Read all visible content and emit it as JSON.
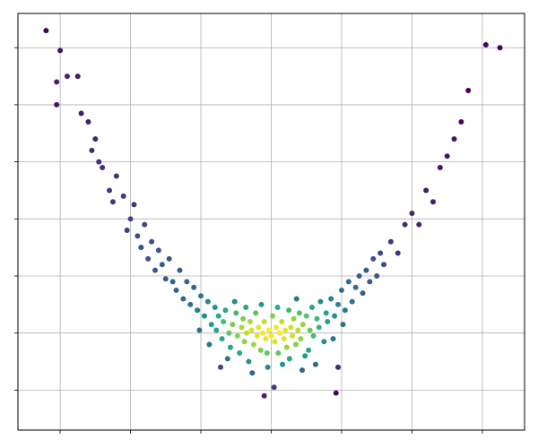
{
  "chart_data": {
    "type": "scatter",
    "colormap": "viridis",
    "grid": true,
    "xlim": [
      -3.6,
      3.6
    ],
    "xticks": [
      -3,
      -2,
      -1,
      0,
      1,
      2,
      3
    ],
    "ylim": [
      -1.7,
      5.6
    ],
    "yticks": [
      -1,
      0,
      1,
      2,
      3,
      4,
      5
    ],
    "x": [
      -3.2,
      -3.0,
      -3.05,
      -2.9,
      -3.05,
      -2.75,
      -2.7,
      -2.6,
      -2.5,
      -2.55,
      -2.45,
      -2.4,
      -2.3,
      -2.2,
      -2.25,
      -2.1,
      -2.0,
      -2.05,
      -1.95,
      -1.9,
      -1.85,
      -1.8,
      -1.75,
      -1.7,
      -1.65,
      -1.6,
      -1.55,
      -1.5,
      -1.45,
      -1.4,
      -1.35,
      -1.3,
      -1.25,
      -1.2,
      -1.15,
      -1.1,
      -1.05,
      -1.0,
      -0.95,
      -0.9,
      -0.85,
      -0.8,
      -0.78,
      -0.75,
      -0.7,
      -0.68,
      -0.65,
      -0.6,
      -0.58,
      -0.55,
      -0.5,
      -0.48,
      -0.45,
      -0.42,
      -0.4,
      -0.38,
      -0.35,
      -0.32,
      -0.3,
      -0.28,
      -0.25,
      -0.22,
      -0.2,
      -0.18,
      -0.15,
      -0.12,
      -0.1,
      -0.08,
      -0.05,
      -0.03,
      0,
      0.02,
      0.05,
      0.07,
      0.1,
      0.12,
      0.15,
      0.18,
      0.2,
      0.22,
      0.25,
      0.28,
      0.3,
      0.32,
      0.35,
      0.38,
      0.4,
      0.42,
      0.45,
      0.48,
      0.5,
      0.55,
      0.58,
      0.6,
      0.65,
      0.68,
      0.7,
      0.75,
      0.78,
      0.8,
      0.85,
      0.9,
      0.95,
      1.0,
      1.05,
      1.1,
      1.15,
      1.2,
      1.25,
      1.3,
      1.35,
      1.4,
      1.45,
      1.5,
      1.55,
      1.6,
      1.7,
      1.8,
      1.9,
      2.0,
      2.1,
      2.2,
      2.3,
      2.4,
      2.5,
      2.6,
      2.7,
      2.8,
      3.05,
      3.25,
      -0.62,
      -0.52,
      -0.36,
      -0.27,
      -0.14,
      -0.06,
      0.04,
      0.09,
      0.16,
      0.26,
      0.36,
      0.44,
      0.53,
      -0.88,
      0.88,
      -1.02,
      1.02,
      0.63,
      -0.72,
      0.95,
      -0.1,
      0.92
    ],
    "y": [
      5.3,
      4.95,
      4.4,
      4.5,
      4.0,
      4.5,
      3.85,
      3.7,
      3.4,
      3.2,
      3.0,
      2.9,
      2.5,
      2.75,
      2.3,
      2.4,
      2.0,
      1.8,
      2.25,
      1.7,
      1.5,
      1.9,
      1.3,
      1.6,
      1.1,
      1.45,
      1.2,
      0.95,
      1.3,
      0.9,
      0.75,
      1.1,
      0.6,
      0.9,
      0.5,
      0.8,
      0.4,
      0.65,
      0.3,
      0.55,
      0.15,
      0.45,
      0.05,
      0.3,
      -0.1,
      0.2,
      0.4,
      0.0,
      -0.25,
      0.15,
      0.35,
      -0.05,
      -0.35,
      0.1,
      0.25,
      -0.15,
      0.0,
      -0.5,
      0.2,
      0.05,
      -0.2,
      0.35,
      -0.05,
      0.1,
      -0.3,
      0.0,
      0.2,
      -0.1,
      -0.6,
      0.05,
      -0.05,
      0.3,
      -0.15,
      0.1,
      -0.35,
      0.0,
      0.2,
      -0.1,
      0.05,
      -0.25,
      0.4,
      0.1,
      -0.05,
      0.25,
      -0.2,
      0.05,
      0.35,
      -0.1,
      0.15,
      -0.4,
      0.3,
      0.05,
      0.45,
      -0.05,
      0.25,
      0.1,
      0.55,
      -0.15,
      0.35,
      0.2,
      0.6,
      0.3,
      0.5,
      0.75,
      0.4,
      0.9,
      0.55,
      0.8,
      1.0,
      0.7,
      1.1,
      0.9,
      1.3,
      1.0,
      1.4,
      1.2,
      1.6,
      1.4,
      1.9,
      2.1,
      1.9,
      2.5,
      2.3,
      2.9,
      3.1,
      3.4,
      3.7,
      4.25,
      5.05,
      5.0,
      -0.45,
      0.55,
      0.45,
      -0.7,
      0.5,
      -0.35,
      -0.95,
      0.45,
      -0.55,
      -0.45,
      0.6,
      -0.65,
      -0.3,
      -0.2,
      -0.1,
      0.05,
      0.15,
      -0.55,
      -0.6,
      -0.6,
      -1.1,
      -1.05
    ]
  }
}
